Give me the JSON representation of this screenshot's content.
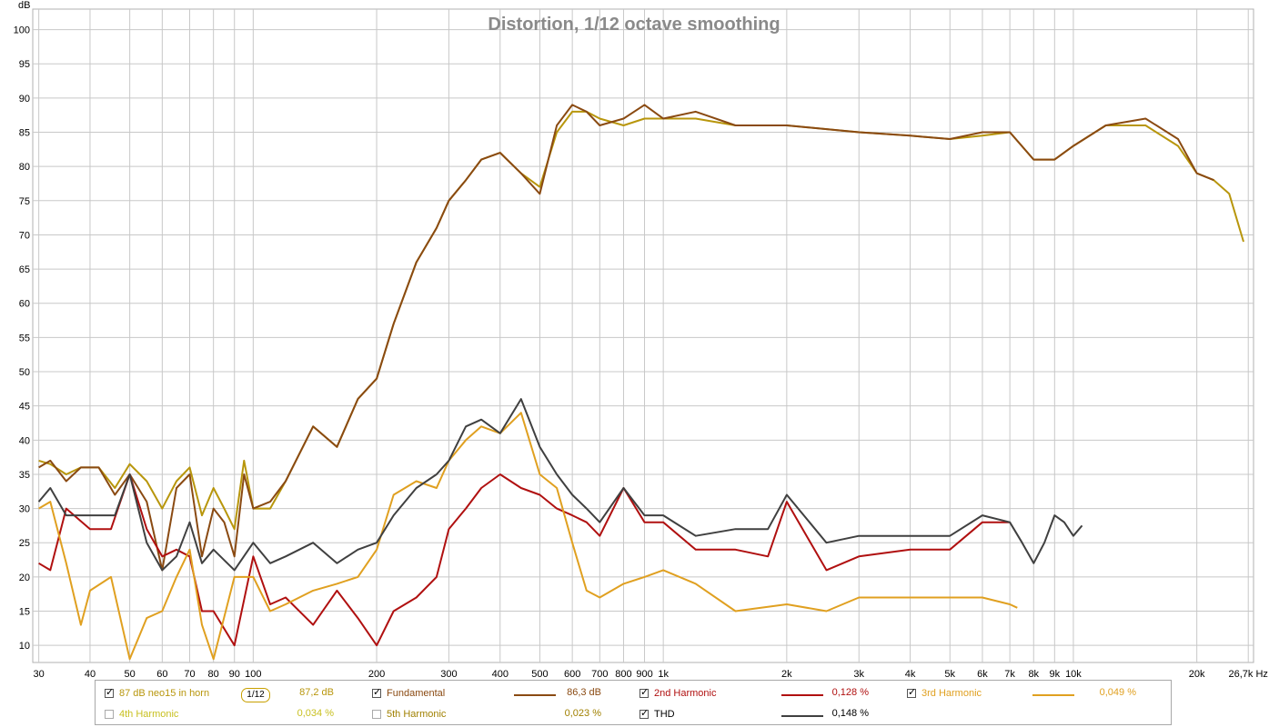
{
  "chart_data": {
    "type": "line",
    "title": "Distortion, 1/12 octave smoothing",
    "ylabel": "dB",
    "xunit": "Hz",
    "xscale": "log",
    "xlim": [
      29,
      27500
    ],
    "ylim": [
      7.5,
      103
    ],
    "grid": true,
    "yticks": [
      10,
      15,
      20,
      25,
      30,
      35,
      40,
      45,
      50,
      55,
      60,
      65,
      70,
      75,
      80,
      85,
      90,
      95,
      100
    ],
    "xticks": [
      {
        "v": 30,
        "label": "30"
      },
      {
        "v": 40,
        "label": "40"
      },
      {
        "v": 50,
        "label": "50"
      },
      {
        "v": 60,
        "label": "60"
      },
      {
        "v": 70,
        "label": "70"
      },
      {
        "v": 80,
        "label": "80"
      },
      {
        "v": 90,
        "label": "90"
      },
      {
        "v": 100,
        "label": "100"
      },
      {
        "v": 200,
        "label": "200"
      },
      {
        "v": 300,
        "label": "300"
      },
      {
        "v": 400,
        "label": "400"
      },
      {
        "v": 500,
        "label": "500"
      },
      {
        "v": 600,
        "label": "600"
      },
      {
        "v": 700,
        "label": "700"
      },
      {
        "v": 800,
        "label": "800"
      },
      {
        "v": 900,
        "label": "900"
      },
      {
        "v": 1000,
        "label": "1k"
      },
      {
        "v": 2000,
        "label": "2k"
      },
      {
        "v": 3000,
        "label": "3k"
      },
      {
        "v": 4000,
        "label": "4k"
      },
      {
        "v": 5000,
        "label": "5k"
      },
      {
        "v": 6000,
        "label": "6k"
      },
      {
        "v": 7000,
        "label": "7k"
      },
      {
        "v": 8000,
        "label": "8k"
      },
      {
        "v": 9000,
        "label": "9k"
      },
      {
        "v": 10000,
        "label": "10k"
      },
      {
        "v": 20000,
        "label": "20k"
      },
      {
        "v": 26700,
        "label": "26,7k Hz"
      }
    ],
    "series": [
      {
        "name": "87 dB neo15 in horn",
        "color": "#b8960c",
        "x": [
          30,
          32,
          35,
          38,
          42,
          46,
          50,
          55,
          60,
          65,
          70,
          75,
          80,
          85,
          90,
          95,
          100,
          110,
          120,
          140,
          160,
          180,
          200,
          220,
          250,
          280,
          300,
          330,
          360,
          400,
          450,
          500,
          550,
          600,
          650,
          700,
          800,
          900,
          1000,
          1200,
          1500,
          2000,
          3000,
          4000,
          5000,
          6000,
          7000,
          8000,
          9000,
          10000,
          12000,
          15000,
          18000,
          20000,
          22000,
          24000,
          26000
        ],
        "y": [
          37,
          36.5,
          35,
          36,
          36,
          33,
          36.5,
          34,
          30,
          34,
          36,
          29,
          33,
          30,
          27,
          37,
          30,
          30,
          34,
          42,
          39,
          46,
          49,
          57,
          66,
          71,
          75,
          78,
          81,
          82,
          79,
          77,
          85,
          88,
          88,
          87,
          86,
          87,
          87,
          87,
          86,
          86,
          85,
          84.5,
          84,
          84.5,
          85,
          81,
          81,
          83,
          86,
          86,
          83,
          79,
          78,
          76,
          69
        ]
      },
      {
        "name": "Fundamental",
        "color": "#8a4a12",
        "x": [
          30,
          32,
          35,
          38,
          42,
          46,
          50,
          55,
          60,
          65,
          70,
          75,
          80,
          85,
          90,
          95,
          100,
          110,
          120,
          140,
          160,
          180,
          200,
          220,
          250,
          280,
          300,
          330,
          360,
          400,
          450,
          500,
          550,
          600,
          650,
          700,
          800,
          900,
          1000,
          1200,
          1500,
          2000,
          3000,
          4000,
          5000,
          6000,
          7000,
          8000,
          9000,
          10000,
          12000,
          15000,
          18000,
          20000,
          22000
        ],
        "y": [
          36,
          37,
          34,
          36,
          36,
          32,
          35,
          31,
          21,
          33,
          35,
          23,
          30,
          28,
          23,
          35,
          30,
          31,
          34,
          42,
          39,
          46,
          49,
          57,
          66,
          71,
          75,
          78,
          81,
          82,
          79,
          76,
          86,
          89,
          88,
          86,
          87,
          89,
          87,
          88,
          86,
          86,
          85,
          84.5,
          84,
          85,
          85,
          81,
          81,
          83,
          86,
          87,
          84,
          79,
          78
        ]
      },
      {
        "name": "2nd Harmonic",
        "color": "#b01010",
        "x": [
          30,
          32,
          35,
          40,
          45,
          50,
          55,
          60,
          65,
          70,
          75,
          80,
          90,
          100,
          110,
          120,
          140,
          160,
          180,
          200,
          220,
          250,
          280,
          300,
          330,
          360,
          400,
          450,
          500,
          550,
          600,
          650,
          700,
          800,
          900,
          1000,
          1200,
          1500,
          1800,
          2000,
          2500,
          3000,
          4000,
          5000,
          6000,
          7000
        ],
        "y": [
          22,
          21,
          30,
          27,
          27,
          35,
          27,
          23,
          24,
          23,
          15,
          15,
          10,
          23,
          16,
          17,
          13,
          18,
          14,
          10,
          15,
          17,
          20,
          27,
          30,
          33,
          35,
          33,
          32,
          30,
          29,
          28,
          26,
          33,
          28,
          28,
          24,
          24,
          23,
          31,
          21,
          23,
          24,
          24,
          28,
          28
        ]
      },
      {
        "name": "3rd Harmonic",
        "color": "#e0a020",
        "x": [
          30,
          32,
          35,
          38,
          40,
          45,
          50,
          55,
          60,
          65,
          70,
          75,
          80,
          90,
          100,
          110,
          120,
          140,
          160,
          180,
          200,
          220,
          250,
          280,
          300,
          330,
          360,
          400,
          450,
          500,
          550,
          600,
          650,
          700,
          800,
          900,
          1000,
          1200,
          1500,
          2000,
          2500,
          3000,
          4000,
          5000,
          6000,
          7000,
          7300
        ],
        "y": [
          30,
          31,
          22,
          13,
          18,
          20,
          8,
          14,
          15,
          20,
          24,
          13,
          8,
          20,
          20,
          15,
          16,
          18,
          19,
          20,
          24,
          32,
          34,
          33,
          37,
          40,
          42,
          41,
          44,
          35,
          33,
          25,
          18,
          17,
          19,
          20,
          21,
          19,
          15,
          16,
          15,
          17,
          17,
          17,
          17,
          16,
          15.5
        ]
      },
      {
        "name": "THD",
        "color": "#404040",
        "x": [
          30,
          32,
          35,
          38,
          42,
          46,
          50,
          55,
          60,
          65,
          70,
          75,
          80,
          90,
          100,
          110,
          120,
          140,
          160,
          180,
          200,
          220,
          250,
          280,
          300,
          330,
          360,
          400,
          450,
          500,
          550,
          600,
          650,
          700,
          800,
          900,
          1000,
          1200,
          1500,
          1800,
          2000,
          2500,
          3000,
          4000,
          5000,
          6000,
          7000,
          7500,
          8000,
          8500,
          9000,
          9500,
          10000,
          10500
        ],
        "y": [
          31,
          33,
          29,
          29,
          29,
          29,
          35,
          25,
          21,
          23,
          28,
          22,
          24,
          21,
          25,
          22,
          23,
          25,
          22,
          24,
          25,
          29,
          33,
          35,
          37,
          42,
          43,
          41,
          46,
          39,
          35,
          32,
          30,
          28,
          33,
          29,
          29,
          26,
          27,
          27,
          32,
          25,
          26,
          26,
          26,
          29,
          28,
          25,
          22,
          25,
          29,
          28,
          26,
          27.5
        ]
      }
    ]
  },
  "legend": {
    "items": [
      {
        "label": "87 dB neo15 in horn",
        "value": "87,2 dB",
        "checked": true,
        "color": "#b8960c"
      },
      {
        "label": "Fundamental",
        "value": "86,3 dB",
        "checked": true,
        "color": "#8a4a12"
      },
      {
        "label": "2nd Harmonic",
        "value": "0,128 %",
        "checked": true,
        "color": "#b01010"
      },
      {
        "label": "3rd Harmonic",
        "value": "0,049 %",
        "checked": true,
        "color": "#e0a020"
      },
      {
        "label": "4th Harmonic",
        "value": "0,034 %",
        "checked": false,
        "color": "#c8c020"
      },
      {
        "label": "5th Harmonic",
        "value": "0,023 %",
        "checked": false,
        "color": "#a08000"
      },
      {
        "label": "THD",
        "value": "0,148 %",
        "checked": true,
        "color": "#404040"
      }
    ],
    "smoothing_label_num": "1",
    "smoothing_label_den": "12"
  }
}
